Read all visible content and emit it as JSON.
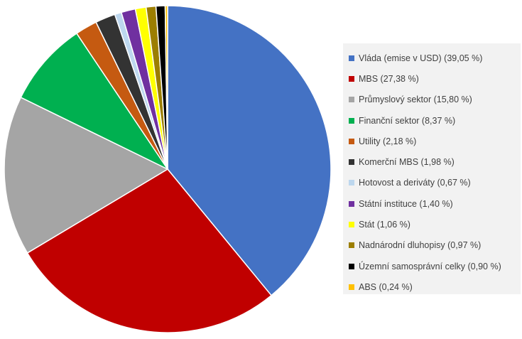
{
  "chart_data": {
    "type": "pie",
    "title": "",
    "legend_position": "right",
    "series": [
      {
        "label": "Vláda (emise v USD) (39,05 %)",
        "value": 39.05,
        "color": "#4472C4"
      },
      {
        "label": "MBS (27,38 %)",
        "value": 27.38,
        "color": "#C00000"
      },
      {
        "label": "Průmyslový sektor (15,80 %)",
        "value": 15.8,
        "color": "#A5A5A5"
      },
      {
        "label": "Finanční sektor (8,37 %)",
        "value": 8.37,
        "color": "#00B050"
      },
      {
        "label": "Utility (2,18 %)",
        "value": 2.18,
        "color": "#C55A11"
      },
      {
        "label": "Komerční MBS (1,98 %)",
        "value": 1.98,
        "color": "#333333"
      },
      {
        "label": "Hotovost a deriváty (0,67 %)",
        "value": 0.67,
        "color": "#BDD7EE"
      },
      {
        "label": "Státní instituce (1,40 %)",
        "value": 1.4,
        "color": "#7030A0"
      },
      {
        "label": "Stát (1,06 %)",
        "value": 1.06,
        "color": "#FFFF00"
      },
      {
        "label": "Nadnárodní dluhopisy (0,97 %)",
        "value": 0.97,
        "color": "#9C7E00"
      },
      {
        "label": "Územní samosprávní celky (0,90 %)",
        "value": 0.9,
        "color": "#000000"
      },
      {
        "label": "ABS (0,24 %)",
        "value": 0.24,
        "color": "#FFC000"
      }
    ]
  }
}
